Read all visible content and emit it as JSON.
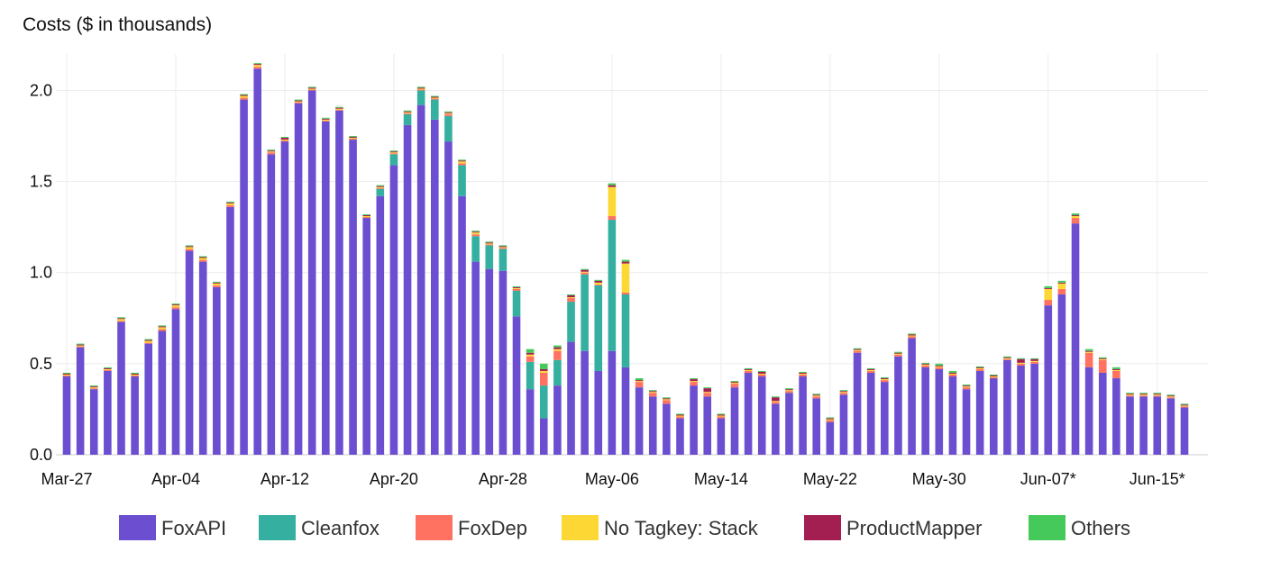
{
  "chart_data": {
    "type": "bar",
    "stacked": true,
    "title": "Costs ($ in thousands)",
    "xlabel": "",
    "ylabel": "",
    "ylim": [
      0,
      2.2
    ],
    "yticks": [
      "0.0",
      "0.5",
      "1.0",
      "1.5",
      "2.0"
    ],
    "ytick_values": [
      0,
      0.5,
      1.0,
      1.5,
      2.0
    ],
    "x_tick_labels": [
      {
        "label": "Mar-27",
        "index": 0
      },
      {
        "label": "Apr-04",
        "index": 8
      },
      {
        "label": "Apr-12",
        "index": 16
      },
      {
        "label": "Apr-20",
        "index": 24
      },
      {
        "label": "Apr-28",
        "index": 32
      },
      {
        "label": "May-06",
        "index": 40
      },
      {
        "label": "May-14",
        "index": 48
      },
      {
        "label": "May-22",
        "index": 56
      },
      {
        "label": "May-30",
        "index": 64
      },
      {
        "label": "Jun-07*",
        "index": 72
      },
      {
        "label": "Jun-15*",
        "index": 80
      }
    ],
    "grid": true,
    "legend_position": "bottom",
    "series": [
      {
        "name": "FoxAPI",
        "color": "#6b4fd0",
        "values": [
          0.43,
          0.59,
          0.36,
          0.46,
          0.73,
          0.43,
          0.61,
          0.68,
          0.8,
          1.12,
          1.06,
          0.92,
          1.36,
          1.95,
          2.12,
          1.65,
          1.72,
          1.93,
          2.0,
          1.83,
          1.89,
          1.73,
          1.3,
          1.42,
          1.59,
          1.81,
          1.92,
          1.84,
          1.72,
          1.42,
          1.06,
          1.02,
          1.01,
          0.76,
          0.36,
          0.2,
          0.38,
          0.62,
          0.57,
          0.46,
          0.57,
          0.48,
          0.37,
          0.32,
          0.28,
          0.2,
          0.38,
          0.32,
          0.2,
          0.37,
          0.45,
          0.43,
          0.28,
          0.34,
          0.43,
          0.31,
          0.18,
          0.33,
          0.56,
          0.45,
          0.4,
          0.54,
          0.64,
          0.48,
          0.47,
          0.43,
          0.36,
          0.46,
          0.42,
          0.52,
          0.49,
          0.5,
          0.82,
          0.88,
          1.27,
          0.48,
          0.45,
          0.42,
          0.32,
          0.32,
          0.32,
          0.31,
          0.26
        ]
      },
      {
        "name": "Cleanfox",
        "color": "#35b0a0",
        "values": [
          0,
          0,
          0,
          0,
          0,
          0,
          0,
          0,
          0,
          0,
          0,
          0,
          0,
          0,
          0,
          0,
          0,
          0,
          0,
          0,
          0,
          0,
          0,
          0.04,
          0.06,
          0.06,
          0.08,
          0.11,
          0.14,
          0.17,
          0.14,
          0.13,
          0.12,
          0.14,
          0.15,
          0.18,
          0.14,
          0.22,
          0.42,
          0.47,
          0.72,
          0.4,
          0,
          0,
          0,
          0,
          0,
          0,
          0,
          0,
          0,
          0,
          0,
          0,
          0,
          0,
          0,
          0,
          0,
          0,
          0,
          0,
          0,
          0,
          0,
          0,
          0,
          0,
          0,
          0,
          0,
          0,
          0,
          0,
          0,
          0,
          0,
          0,
          0,
          0,
          0,
          0,
          0
        ]
      },
      {
        "name": "FoxDep",
        "color": "#ff7262",
        "values": [
          0.005,
          0.005,
          0.005,
          0.005,
          0.005,
          0.005,
          0.005,
          0.01,
          0.01,
          0.01,
          0.01,
          0.01,
          0.01,
          0.01,
          0.01,
          0.01,
          0.005,
          0.005,
          0.005,
          0.005,
          0.005,
          0.005,
          0.005,
          0.005,
          0.005,
          0.005,
          0.005,
          0.005,
          0.01,
          0.01,
          0.01,
          0.005,
          0.005,
          0.01,
          0.03,
          0.07,
          0.05,
          0.02,
          0.01,
          0.005,
          0.02,
          0.01,
          0.03,
          0.02,
          0.02,
          0.01,
          0.02,
          0.02,
          0.01,
          0.02,
          0.01,
          0.01,
          0.01,
          0.01,
          0.01,
          0.01,
          0.01,
          0.01,
          0.01,
          0.01,
          0.01,
          0.01,
          0.01,
          0.01,
          0.01,
          0.01,
          0.01,
          0.01,
          0.005,
          0.005,
          0.01,
          0.01,
          0.03,
          0.03,
          0.03,
          0.08,
          0.07,
          0.04,
          0.005,
          0.005,
          0.005,
          0.005,
          0.005
        ]
      },
      {
        "name": "No Tagkey: Stack",
        "color": "#fdd835",
        "values": [
          0.005,
          0.005,
          0.005,
          0.005,
          0.01,
          0.005,
          0.01,
          0.01,
          0.01,
          0.01,
          0.01,
          0.01,
          0.01,
          0.01,
          0.01,
          0.005,
          0.005,
          0.005,
          0.005,
          0.005,
          0.005,
          0.005,
          0.005,
          0.005,
          0.005,
          0.005,
          0.005,
          0.005,
          0.005,
          0.01,
          0.01,
          0.005,
          0.005,
          0.005,
          0.01,
          0.01,
          0.01,
          0.005,
          0.005,
          0.01,
          0.16,
          0.16,
          0.005,
          0.005,
          0.005,
          0.005,
          0.005,
          0.005,
          0.005,
          0.005,
          0.005,
          0.005,
          0.005,
          0.005,
          0.005,
          0.005,
          0.005,
          0.005,
          0.005,
          0.005,
          0.005,
          0.005,
          0.005,
          0.005,
          0.005,
          0.005,
          0.005,
          0.005,
          0.005,
          0.005,
          0.005,
          0.005,
          0.06,
          0.03,
          0.01,
          0.005,
          0.005,
          0.005,
          0.005,
          0.005,
          0.005,
          0.005,
          0.005
        ]
      },
      {
        "name": "ProductMapper",
        "color": "#a31f51",
        "values": [
          0.005,
          0.005,
          0.005,
          0.005,
          0.005,
          0.005,
          0.005,
          0.005,
          0.005,
          0.005,
          0.005,
          0.005,
          0.005,
          0.005,
          0.005,
          0.005,
          0.01,
          0.005,
          0.005,
          0.005,
          0.005,
          0.005,
          0.005,
          0.005,
          0.005,
          0.005,
          0.005,
          0.005,
          0.005,
          0.005,
          0.005,
          0.005,
          0.005,
          0.005,
          0.01,
          0.01,
          0.01,
          0.01,
          0.01,
          0.01,
          0.01,
          0.01,
          0.005,
          0.005,
          0.005,
          0.005,
          0.01,
          0.02,
          0.005,
          0.005,
          0.005,
          0.01,
          0.02,
          0.005,
          0.005,
          0.005,
          0.005,
          0.005,
          0.005,
          0.005,
          0.005,
          0.005,
          0.005,
          0.005,
          0.005,
          0.005,
          0.005,
          0.005,
          0.005,
          0.005,
          0.02,
          0.01,
          0.005,
          0.005,
          0.005,
          0.005,
          0.005,
          0.005,
          0.005,
          0.005,
          0.005,
          0.005,
          0.005
        ]
      },
      {
        "name": "Others",
        "color": "#45c95b",
        "values": [
          0.005,
          0.005,
          0.005,
          0.005,
          0.005,
          0.005,
          0.005,
          0.005,
          0.005,
          0.005,
          0.005,
          0.005,
          0.005,
          0.005,
          0.005,
          0.005,
          0.005,
          0.005,
          0.005,
          0.005,
          0.005,
          0.005,
          0.005,
          0.005,
          0.005,
          0.005,
          0.005,
          0.005,
          0.005,
          0.005,
          0.005,
          0.005,
          0.005,
          0.005,
          0.02,
          0.03,
          0.01,
          0.005,
          0.005,
          0.005,
          0.01,
          0.01,
          0.01,
          0.005,
          0.005,
          0.005,
          0.005,
          0.005,
          0.005,
          0.005,
          0.005,
          0.005,
          0.005,
          0.005,
          0.005,
          0.005,
          0.005,
          0.005,
          0.005,
          0.005,
          0.005,
          0.005,
          0.005,
          0.005,
          0.01,
          0.01,
          0.005,
          0.005,
          0.005,
          0.005,
          0.005,
          0.005,
          0.01,
          0.01,
          0.01,
          0.01,
          0.005,
          0.01,
          0.005,
          0.005,
          0.005,
          0.005,
          0.005
        ]
      }
    ]
  }
}
